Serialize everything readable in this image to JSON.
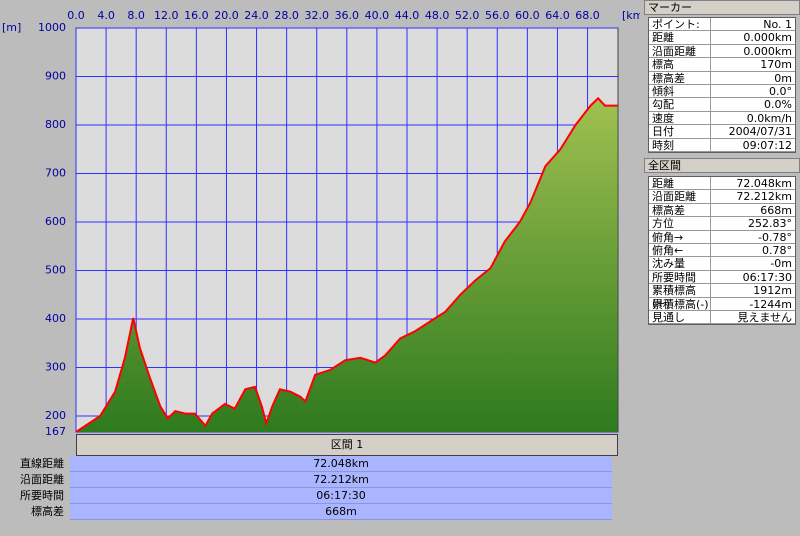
{
  "chart_data": {
    "type": "area",
    "y_unit": "[m]",
    "x_unit": "[km]",
    "x": [
      0,
      3.2,
      5.2,
      6.5,
      7.6,
      8.5,
      9.8,
      11.2,
      12.2,
      13.2,
      14.5,
      15.8,
      17.2,
      18.1,
      19.8,
      21.1,
      22.5,
      23.8,
      24.7,
      25.3,
      26.1,
      27.1,
      28.5,
      29.8,
      30.5,
      31.8,
      33.8,
      35.8,
      37.8,
      39.8,
      41.1,
      43.1,
      45.1,
      47.1,
      49.1,
      51.1,
      53.1,
      55.1,
      57.0,
      59.0,
      60.4,
      62.4,
      64.4,
      66.4,
      68.4,
      69.4,
      70.3,
      72.0
    ],
    "values": [
      167,
      200,
      250,
      320,
      402,
      340,
      280,
      220,
      195,
      210,
      205,
      205,
      180,
      205,
      225,
      215,
      255,
      260,
      220,
      185,
      220,
      255,
      250,
      240,
      230,
      285,
      295,
      315,
      320,
      310,
      325,
      360,
      375,
      395,
      415,
      450,
      480,
      505,
      560,
      600,
      640,
      715,
      750,
      800,
      840,
      855,
      840,
      840
    ],
    "color": "#ff0000",
    "xlim": [
      0,
      72.048
    ],
    "ylim": [
      167,
      1000
    ],
    "xticks": [
      {
        "value": 0,
        "label": "0.0"
      },
      {
        "value": 4,
        "label": "4.0"
      },
      {
        "value": 8,
        "label": "8.0"
      },
      {
        "value": 12,
        "label": "12.0"
      },
      {
        "value": 16,
        "label": "16.0"
      },
      {
        "value": 20,
        "label": "20.0"
      },
      {
        "value": 24,
        "label": "24.0"
      },
      {
        "value": 28,
        "label": "28.0"
      },
      {
        "value": 32,
        "label": "32.0"
      },
      {
        "value": 36,
        "label": "36.0"
      },
      {
        "value": 40,
        "label": "40.0"
      },
      {
        "value": 44,
        "label": "44.0"
      },
      {
        "value": 48,
        "label": "48.0"
      },
      {
        "value": 52,
        "label": "52.0"
      },
      {
        "value": 56,
        "label": "56.0"
      },
      {
        "value": 60,
        "label": "60.0"
      },
      {
        "value": 64,
        "label": "64.0"
      },
      {
        "value": 68,
        "label": "68.0"
      }
    ],
    "yticks": [
      167,
      200,
      300,
      400,
      500,
      600,
      700,
      800,
      900,
      1000
    ],
    "grid": true
  },
  "marker": {
    "title": "マーカー",
    "rows": [
      [
        "ポイント:",
        "No. 1"
      ],
      [
        "距離",
        "0.000km"
      ],
      [
        "沿面距離",
        "0.000km"
      ],
      [
        "標高",
        "170m"
      ],
      [
        "標高差",
        "0m"
      ],
      [
        "傾斜",
        "0.0°"
      ],
      [
        "勾配",
        "0.0%"
      ],
      [
        "速度",
        "0.0km/h"
      ],
      [
        "日付",
        "2004/07/31"
      ],
      [
        "時刻",
        "09:07:12"
      ]
    ]
  },
  "total": {
    "title": "全区間",
    "rows": [
      [
        "距離",
        "72.048km"
      ],
      [
        "沿面距離",
        "72.212km"
      ],
      [
        "標高差",
        "668m"
      ],
      [
        "方位",
        "252.83°"
      ],
      [
        "俯角→",
        "-0.78°"
      ],
      [
        "俯角←",
        "0.78°"
      ],
      [
        "沈み量",
        "-0m"
      ],
      [
        "所要時間",
        "06:17:30"
      ],
      [
        "累積標高(+)",
        "1912m"
      ],
      [
        "累積標高(-)",
        "-1244m"
      ],
      [
        "見通し",
        "見えません"
      ]
    ]
  },
  "section": {
    "title": "区間 1",
    "rows": [
      [
        "直線距離",
        "72.048km"
      ],
      [
        "沿面距離",
        "72.212km"
      ],
      [
        "所要時間",
        "06:17:30"
      ],
      [
        "標高差",
        "668m"
      ]
    ]
  }
}
